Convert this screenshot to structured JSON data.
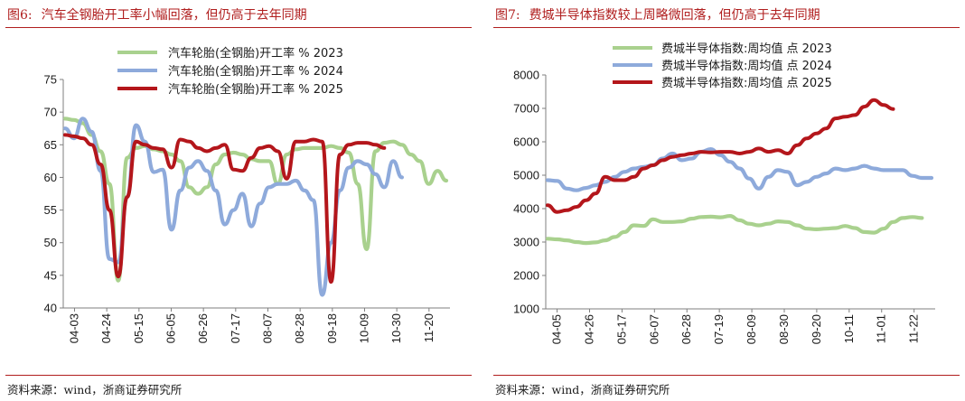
{
  "charts": [
    {
      "figure_no": "图6:",
      "title": "汽车全钢胎开工率小幅回落，但仍高于去年同期",
      "source": "资料来源：wind，浙商证券研究所"
    },
    {
      "figure_no": "图7:",
      "title": "费城半导体指数较上周略微回落，但仍高于去年同期",
      "source": "资料来源：wind，浙商证券研究所"
    }
  ],
  "chart_data": [
    {
      "type": "line",
      "title": "汽车全钢胎开工率小幅回落，但仍高于去年同期",
      "xlabel": "",
      "ylabel": "",
      "ylim": [
        40,
        75
      ],
      "yticks": [
        "40",
        "45",
        "50",
        "55",
        "60",
        "65",
        "70",
        "75"
      ],
      "x_tick_labels": [
        "04-03",
        "04-24",
        "05-15",
        "06-05",
        "06-26",
        "07-17",
        "08-07",
        "08-28",
        "09-18",
        "10-09",
        "10-30",
        "11-20"
      ],
      "legend_position": "top-right",
      "series": [
        {
          "name": "汽车轮胎(全钢胎)开工率  %  2023",
          "color": "#a9d18e",
          "values": [
            69,
            68.8,
            68.3,
            66.5,
            64,
            59,
            44.2,
            63,
            64.5,
            64.8,
            64.3,
            64,
            63.5,
            62.5,
            58.5,
            57.5,
            58.5,
            62,
            63.5,
            63.8,
            63.5,
            62.8,
            62.5,
            62.5,
            59,
            63.5,
            64.3,
            64.5,
            64.5,
            64.5,
            64.8,
            64.5,
            63.8,
            59,
            49,
            64,
            65.3,
            65.5,
            65,
            63.5,
            62.5,
            59,
            61,
            59.5
          ]
        },
        {
          "name": "汽车轮胎(全钢胎)开工率  %  2024",
          "color": "#8eaadb",
          "values": [
            67.5,
            66,
            69,
            67,
            61,
            47.5,
            47,
            57,
            68,
            65.5,
            60.8,
            61.2,
            52,
            58,
            61.5,
            62.5,
            61,
            58,
            52.8,
            55,
            57.5,
            52.5,
            56,
            58.5,
            59,
            59,
            59.5,
            58,
            56.5,
            42,
            50,
            58,
            61.5,
            62.5,
            62,
            60.5,
            58.5,
            62.5,
            60
          ]
        },
        {
          "name": "汽车轮胎(全钢胎)开工率  %  2025",
          "color": "#b4161b",
          "values": [
            66.5,
            66.3,
            66,
            65,
            62,
            55,
            44.8,
            57,
            65.5,
            65,
            64.5,
            64.3,
            61.5,
            65.8,
            65.5,
            64.5,
            64,
            64.5,
            65,
            61.2,
            61,
            63,
            64.5,
            64.8,
            64,
            59.8,
            65.5,
            65.5,
            65.8,
            65.5,
            44,
            63.5,
            65,
            65.3,
            65.3,
            65,
            64.5
          ]
        }
      ]
    },
    {
      "type": "line",
      "title": "费城半导体指数较上周略微回落，但仍高于去年同期",
      "xlabel": "",
      "ylabel": "",
      "ylim": [
        1000,
        8000
      ],
      "yticks": [
        "1000",
        "2000",
        "3000",
        "4000",
        "5000",
        "6000",
        "7000",
        "8000"
      ],
      "x_tick_labels": [
        "04-05",
        "04-26",
        "05-17",
        "06-07",
        "06-28",
        "07-19",
        "08-09",
        "08-30",
        "09-20",
        "10-11",
        "11-01",
        "11-22"
      ],
      "legend_position": "top-left",
      "series": [
        {
          "name": "费城半导体指数:周均值  点  2023",
          "color": "#a9d18e",
          "values": [
            3100,
            3080,
            3050,
            3000,
            2970,
            2990,
            3050,
            3150,
            3300,
            3500,
            3480,
            3680,
            3600,
            3600,
            3620,
            3700,
            3750,
            3760,
            3740,
            3780,
            3650,
            3550,
            3500,
            3550,
            3620,
            3600,
            3500,
            3400,
            3380,
            3400,
            3420,
            3480,
            3420,
            3300,
            3280,
            3400,
            3600,
            3720,
            3750,
            3720
          ]
        },
        {
          "name": "费城半导体指数:周均值  点  2024",
          "color": "#8eaadb",
          "values": [
            4850,
            4830,
            4600,
            4550,
            4620,
            4700,
            4800,
            4950,
            5100,
            5200,
            5250,
            5300,
            5500,
            5650,
            5450,
            5500,
            5700,
            5780,
            5600,
            5400,
            5200,
            4900,
            4600,
            4950,
            5150,
            5100,
            4700,
            4800,
            4950,
            5050,
            5200,
            5150,
            5200,
            5280,
            5200,
            5150,
            5150,
            5150,
            4980,
            4920,
            4920
          ]
        },
        {
          "name": "费城半导体指数:周均值  点  2025",
          "color": "#b4161b",
          "values": [
            4100,
            3900,
            3950,
            4050,
            4250,
            4450,
            4950,
            4850,
            4850,
            4950,
            5200,
            5300,
            5450,
            5550,
            5600,
            5650,
            5700,
            5680,
            5700,
            5700,
            5650,
            5700,
            5800,
            5700,
            5750,
            5650,
            5900,
            6100,
            6250,
            6400,
            6700,
            6750,
            6800,
            7050,
            7250,
            7100,
            6980
          ]
        }
      ]
    }
  ]
}
